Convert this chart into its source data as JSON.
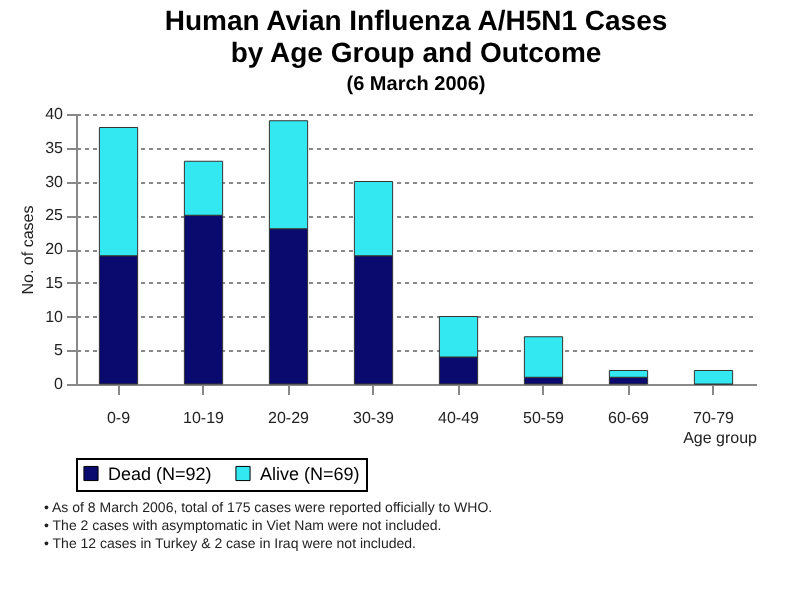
{
  "chart_data": {
    "type": "bar",
    "title": "Human Avian Influenza A/H5N1 Cases\nby Age Group and Outcome",
    "subtitle": "(6 March 2006)",
    "xlabel": "Age group",
    "ylabel": "No. of cases",
    "categories": [
      "0-9",
      "10-19",
      "20-29",
      "30-39",
      "40-49",
      "50-59",
      "60-69",
      "70-79"
    ],
    "series": [
      {
        "name": "Dead (N=92)",
        "color": "#0a0a6e",
        "values": [
          19,
          25,
          23,
          19,
          4,
          1,
          1,
          0
        ]
      },
      {
        "name": "Alive (N=69)",
        "color": "#33e8f0",
        "values": [
          19,
          8,
          16,
          11,
          6,
          6,
          1,
          2
        ]
      }
    ],
    "stacked": true,
    "ylim": [
      0,
      40
    ],
    "yticks": [
      0,
      5,
      10,
      15,
      20,
      25,
      30,
      35,
      40
    ],
    "grid": "y",
    "legend": "bottom",
    "annotations": [
      "• As of 8 March 2006, total of 175 cases were reported officially to WHO.",
      "• The 2 cases with asymptomatic in Viet Nam were not included.",
      "• The 12 cases in Turkey & 2 case in Iraq were not included."
    ]
  }
}
